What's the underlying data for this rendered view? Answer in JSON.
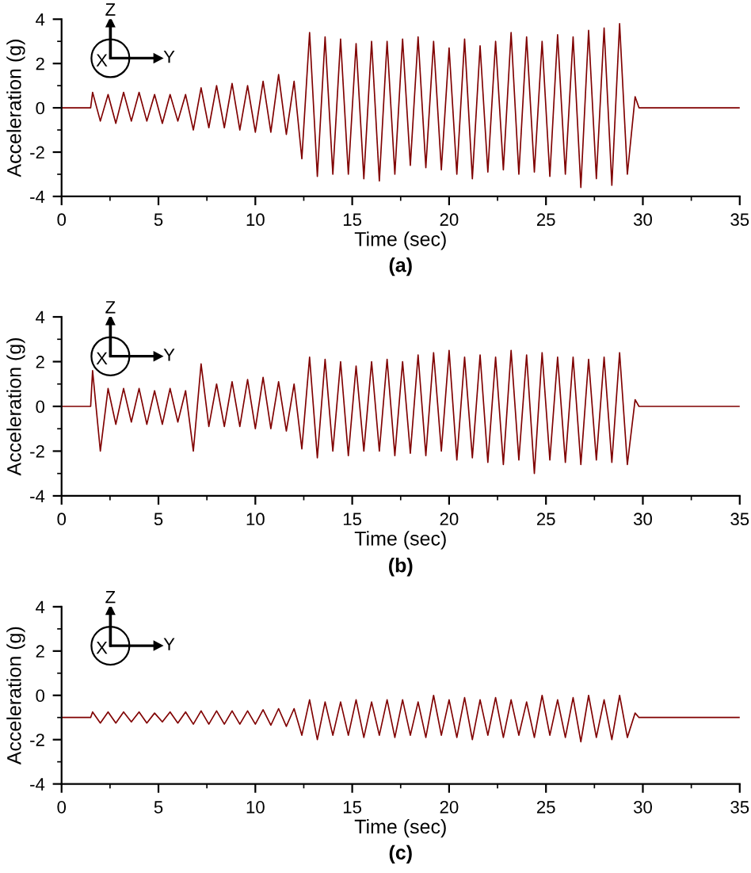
{
  "chart_data": [
    {
      "type": "line",
      "title": "(a)",
      "xlabel": "Time (sec)",
      "ylabel": "Acceleration (g)",
      "annotations": [
        "Z",
        "X",
        "Y"
      ],
      "xlim": [
        0,
        35
      ],
      "xticks": [
        0,
        5,
        10,
        15,
        20,
        25,
        30,
        35
      ],
      "ylim": [
        -4,
        4
      ],
      "yticks": [
        -4,
        -2,
        0,
        2,
        4
      ],
      "grid": false,
      "x": [
        0,
        1.5,
        1.6,
        2.0,
        2.4,
        2.8,
        3.2,
        3.6,
        4.0,
        4.4,
        4.8,
        5.2,
        5.6,
        6.0,
        6.4,
        6.8,
        7.2,
        7.6,
        8.0,
        8.4,
        8.8,
        9.2,
        9.6,
        10.0,
        10.4,
        10.8,
        11.2,
        11.6,
        12.0,
        12.4,
        12.8,
        13.2,
        13.6,
        14.0,
        14.4,
        14.8,
        15.2,
        15.6,
        16.0,
        16.4,
        16.8,
        17.2,
        17.6,
        18.0,
        18.4,
        18.8,
        19.2,
        19.6,
        20.0,
        20.4,
        20.8,
        21.2,
        21.6,
        22.0,
        22.4,
        22.8,
        23.2,
        23.6,
        24.0,
        24.4,
        24.8,
        25.2,
        25.6,
        26.0,
        26.4,
        26.8,
        27.2,
        27.6,
        28.0,
        28.4,
        28.8,
        29.2,
        29.6,
        29.8,
        35
      ],
      "series": [
        {
          "color": "#800000",
          "values": [
            0,
            0,
            0.7,
            -0.6,
            0.6,
            -0.7,
            0.7,
            -0.6,
            0.7,
            -0.6,
            0.6,
            -0.7,
            0.6,
            -0.6,
            0.6,
            -1.0,
            0.9,
            -0.9,
            1.0,
            -0.9,
            1.1,
            -1.0,
            1.0,
            -1.1,
            1.2,
            -1.1,
            1.5,
            -1.2,
            1.2,
            -2.3,
            3.4,
            -3.1,
            3.2,
            -3.0,
            3.1,
            -3.0,
            2.9,
            -3.2,
            3.0,
            -3.3,
            3.0,
            -3.0,
            3.1,
            -2.6,
            3.2,
            -2.7,
            3.0,
            -2.8,
            2.7,
            -3.0,
            3.1,
            -3.2,
            2.8,
            -2.9,
            3.0,
            -2.8,
            3.4,
            -3.0,
            3.2,
            -2.9,
            3.0,
            -3.1,
            3.3,
            -3.0,
            3.2,
            -3.6,
            3.5,
            -3.2,
            3.6,
            -3.5,
            3.8,
            -3.0,
            0.5,
            0,
            0
          ]
        }
      ]
    },
    {
      "type": "line",
      "title": "(b)",
      "xlabel": "Time (sec)",
      "ylabel": "Acceleration (g)",
      "annotations": [
        "Z",
        "X",
        "Y"
      ],
      "xlim": [
        0,
        35
      ],
      "xticks": [
        0,
        5,
        10,
        15,
        20,
        25,
        30,
        35
      ],
      "ylim": [
        -4,
        4
      ],
      "yticks": [
        -4,
        -2,
        0,
        2,
        4
      ],
      "grid": false,
      "x": [
        0,
        1.5,
        1.6,
        2.0,
        2.4,
        2.8,
        3.2,
        3.6,
        4.0,
        4.4,
        4.8,
        5.2,
        5.6,
        6.0,
        6.4,
        6.8,
        7.2,
        7.6,
        8.0,
        8.4,
        8.8,
        9.2,
        9.6,
        10.0,
        10.4,
        10.8,
        11.2,
        11.6,
        12.0,
        12.4,
        12.8,
        13.2,
        13.6,
        14.0,
        14.4,
        14.8,
        15.2,
        15.6,
        16.0,
        16.4,
        16.8,
        17.2,
        17.6,
        18.0,
        18.4,
        18.8,
        19.2,
        19.6,
        20.0,
        20.4,
        20.8,
        21.2,
        21.6,
        22.0,
        22.4,
        22.8,
        23.2,
        23.6,
        24.0,
        24.4,
        24.8,
        25.2,
        25.6,
        26.0,
        26.4,
        26.8,
        27.2,
        27.6,
        28.0,
        28.4,
        28.8,
        29.2,
        29.6,
        29.8,
        35
      ],
      "series": [
        {
          "color": "#800000",
          "values": [
            0,
            0,
            1.6,
            -2.0,
            0.8,
            -0.8,
            0.8,
            -0.7,
            0.8,
            -0.8,
            0.7,
            -0.8,
            0.8,
            -0.7,
            0.7,
            -2.0,
            1.9,
            -0.9,
            1.0,
            -0.9,
            1.1,
            -0.9,
            1.2,
            -1.0,
            1.3,
            -1.0,
            1.1,
            -1.1,
            1.0,
            -1.9,
            2.2,
            -2.3,
            2.1,
            -2.0,
            2.0,
            -2.2,
            1.8,
            -2.0,
            2.0,
            -2.0,
            2.1,
            -2.2,
            2.0,
            -2.1,
            2.3,
            -2.2,
            2.4,
            -2.0,
            2.5,
            -2.4,
            2.2,
            -2.3,
            2.3,
            -2.5,
            2.2,
            -2.6,
            2.5,
            -2.4,
            2.3,
            -3.0,
            2.4,
            -2.4,
            2.2,
            -2.5,
            2.2,
            -2.6,
            2.1,
            -2.4,
            2.2,
            -2.5,
            2.4,
            -2.6,
            0.3,
            0,
            0
          ]
        }
      ]
    },
    {
      "type": "line",
      "title": "(c)",
      "xlabel": "Time (sec)",
      "ylabel": "Acceleration (g)",
      "annotations": [
        "Z",
        "X",
        "Y"
      ],
      "xlim": [
        0,
        35
      ],
      "xticks": [
        0,
        5,
        10,
        15,
        20,
        25,
        30,
        35
      ],
      "ylim": [
        -4,
        4
      ],
      "yticks": [
        -4,
        -2,
        0,
        2,
        4
      ],
      "grid": false,
      "x": [
        0,
        1.5,
        1.6,
        2.0,
        2.4,
        2.8,
        3.2,
        3.6,
        4.0,
        4.4,
        4.8,
        5.2,
        5.6,
        6.0,
        6.4,
        6.8,
        7.2,
        7.6,
        8.0,
        8.4,
        8.8,
        9.2,
        9.6,
        10.0,
        10.4,
        10.8,
        11.2,
        11.6,
        12.0,
        12.4,
        12.8,
        13.2,
        13.6,
        14.0,
        14.4,
        14.8,
        15.2,
        15.6,
        16.0,
        16.4,
        16.8,
        17.2,
        17.6,
        18.0,
        18.4,
        18.8,
        19.2,
        19.6,
        20.0,
        20.4,
        20.8,
        21.2,
        21.6,
        22.0,
        22.4,
        22.8,
        23.2,
        23.6,
        24.0,
        24.4,
        24.8,
        25.2,
        25.6,
        26.0,
        26.4,
        26.8,
        27.2,
        27.6,
        28.0,
        28.4,
        28.8,
        29.2,
        29.6,
        29.8,
        35
      ],
      "series": [
        {
          "color": "#800000",
          "values": [
            -1,
            -1,
            -0.75,
            -1.25,
            -0.75,
            -1.25,
            -0.75,
            -1.2,
            -0.75,
            -1.25,
            -0.8,
            -1.2,
            -0.75,
            -1.25,
            -0.75,
            -1.3,
            -0.7,
            -1.3,
            -0.7,
            -1.3,
            -0.7,
            -1.3,
            -0.7,
            -1.3,
            -0.65,
            -1.35,
            -0.6,
            -1.4,
            -0.6,
            -1.8,
            -0.2,
            -2.0,
            -0.3,
            -1.8,
            -0.3,
            -1.8,
            -0.2,
            -1.9,
            -0.3,
            -1.8,
            -0.2,
            -1.9,
            -0.2,
            -1.8,
            -0.3,
            -1.9,
            0.0,
            -1.8,
            -0.2,
            -1.9,
            -0.1,
            -2.0,
            -0.2,
            -1.8,
            -0.1,
            -1.9,
            -0.2,
            -1.8,
            -0.3,
            -1.9,
            0.0,
            -1.8,
            -0.2,
            -1.9,
            -0.1,
            -2.1,
            0.0,
            -1.9,
            -0.2,
            -2.0,
            0.0,
            -1.9,
            -0.8,
            -1,
            -1
          ]
        }
      ]
    }
  ]
}
